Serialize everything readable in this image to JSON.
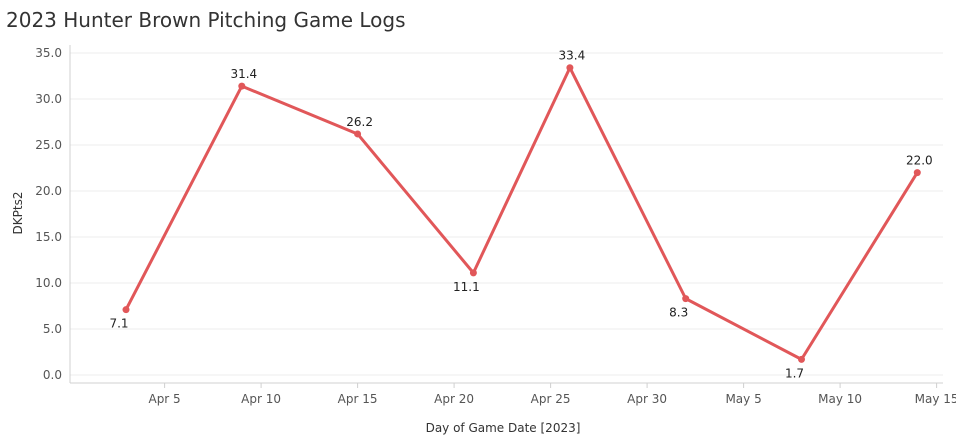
{
  "chart_data": {
    "type": "line",
    "title": "2023 Hunter Brown Pitching Game Logs",
    "xlabel": "Day of Game Date [2023]",
    "ylabel": "DKPts2",
    "x_ticks": [
      "Apr 5",
      "Apr 10",
      "Apr 15",
      "Apr 20",
      "Apr 25",
      "Apr 30",
      "May 5",
      "May 10",
      "May 15"
    ],
    "y_ticks": [
      "0.0",
      "5.0",
      "10.0",
      "15.0",
      "20.0",
      "25.0",
      "30.0",
      "35.0"
    ],
    "ylim": [
      0,
      35
    ],
    "xlim": [
      "2023-04-01",
      "2023-05-16"
    ],
    "grid": true,
    "color": "#e15759",
    "points": [
      {
        "x": "2023-04-03",
        "y": 7.1,
        "label": "7.1"
      },
      {
        "x": "2023-04-09",
        "y": 31.4,
        "label": "31.4"
      },
      {
        "x": "2023-04-15",
        "y": 26.2,
        "label": "26.2"
      },
      {
        "x": "2023-04-21",
        "y": 11.1,
        "label": "11.1"
      },
      {
        "x": "2023-04-26",
        "y": 33.4,
        "label": "33.4"
      },
      {
        "x": "2023-05-02",
        "y": 8.3,
        "label": "8.3"
      },
      {
        "x": "2023-05-08",
        "y": 1.7,
        "label": "1.7"
      },
      {
        "x": "2023-05-14",
        "y": 22.0,
        "label": "22.0"
      }
    ]
  }
}
